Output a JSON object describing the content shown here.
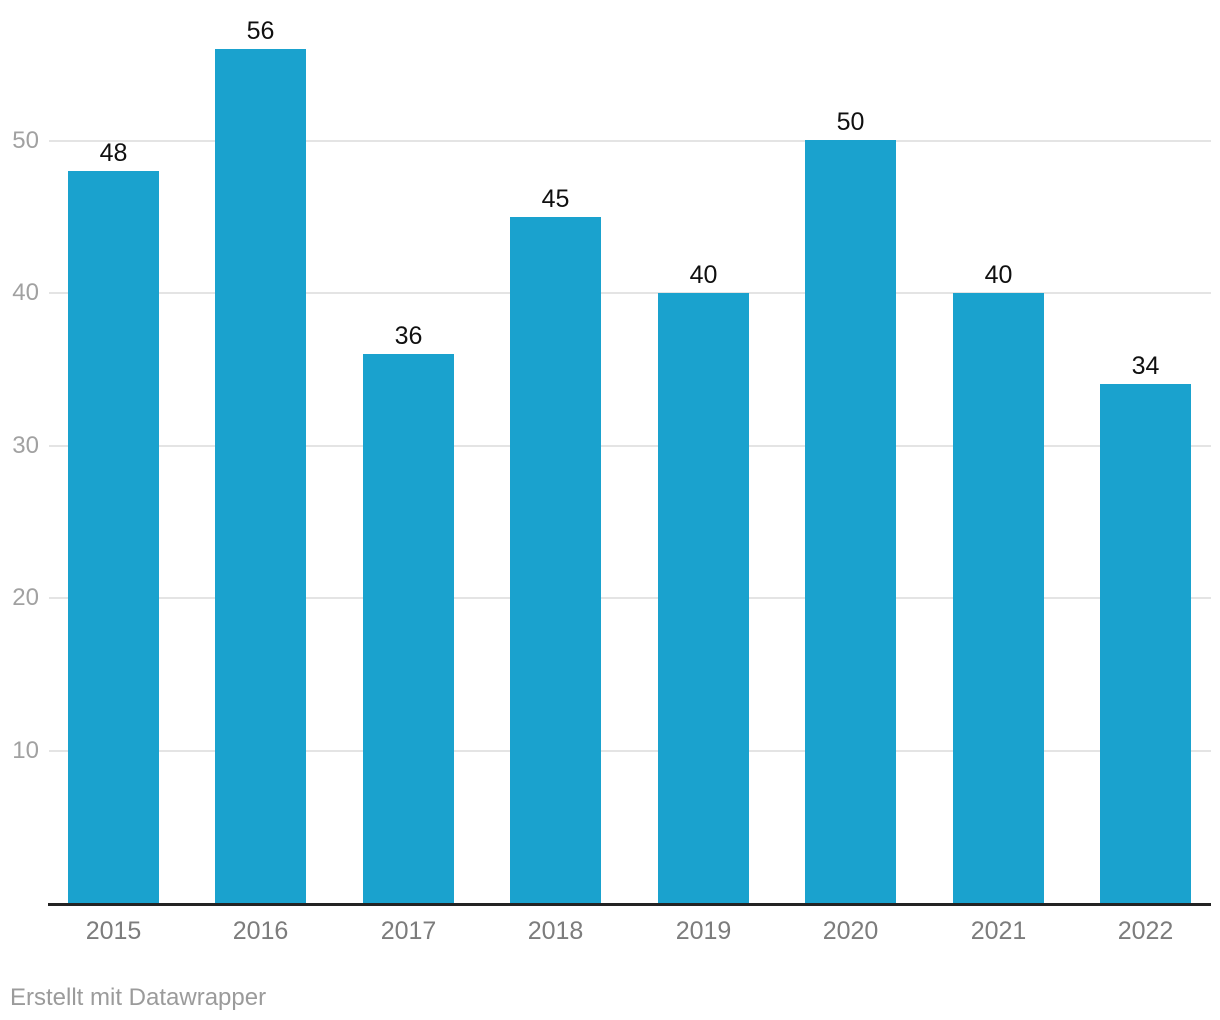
{
  "chart_data": {
    "type": "bar",
    "categories": [
      "2015",
      "2016",
      "2017",
      "2018",
      "2019",
      "2020",
      "2021",
      "2022"
    ],
    "values": [
      48,
      56,
      36,
      45,
      40,
      50,
      40,
      34
    ],
    "value_labels": [
      "48",
      "56",
      "36",
      "45",
      "40",
      "50",
      "40",
      "34"
    ],
    "title": "",
    "xlabel": "",
    "ylabel": "",
    "ylim": [
      0,
      57
    ],
    "yticks": [
      10,
      20,
      30,
      40,
      50
    ],
    "grid": true,
    "legend": false,
    "orientation": "vertical",
    "value_labels_shown": true
  },
  "footer": {
    "attribution": "Erstellt mit Datawrapper"
  },
  "colors": {
    "bar": "#1aa2ce",
    "value_label": "#101010",
    "y_tick_label": "#a1a1a1",
    "x_tick_label": "#7c7c7c",
    "gridline": "#e4e4e4",
    "axis_line": "#232323",
    "attribution": "#9b9b9b",
    "background": "#ffffff"
  }
}
